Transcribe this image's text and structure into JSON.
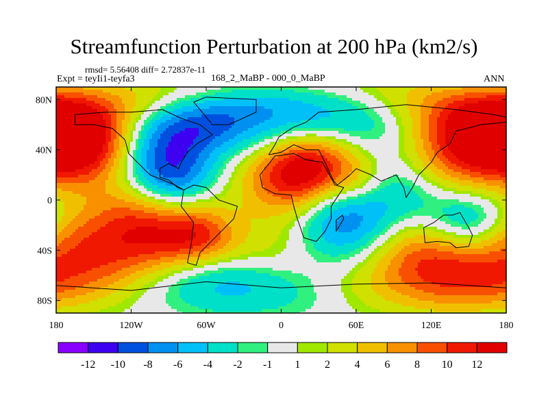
{
  "title": "Streamfunction Perturbation at 200 hPa (km2/s)",
  "stats": "rmsd= 5.56408 diff= 2.72837e-11",
  "experiment": "Expt = teyIi1-teyfa3",
  "comparison": "168_2_MaBP - 000_0_MaBP",
  "season": "ANN",
  "chart_data": {
    "type": "heatmap",
    "title": "Streamfunction Perturbation at 200 hPa (km2/s)",
    "x_ticks": [
      {
        "value": -180,
        "label": "180"
      },
      {
        "value": -120,
        "label": "120W"
      },
      {
        "value": -60,
        "label": "60W"
      },
      {
        "value": 0,
        "label": "0"
      },
      {
        "value": 60,
        "label": "60E"
      },
      {
        "value": 120,
        "label": "120E"
      },
      {
        "value": 180,
        "label": "180"
      }
    ],
    "y_ticks": [
      {
        "value": 80,
        "label": "80N"
      },
      {
        "value": 40,
        "label": "40N"
      },
      {
        "value": 0,
        "label": "0"
      },
      {
        "value": -40,
        "label": "40S"
      },
      {
        "value": -80,
        "label": "80S"
      }
    ],
    "xlim": [
      -180,
      180
    ],
    "ylim": [
      -90,
      90
    ],
    "colorbar_labels": [
      "-12",
      "-10",
      "-8",
      "-6",
      "-4",
      "-2",
      "-1",
      "1",
      "2",
      "4",
      "6",
      "8",
      "10",
      "12"
    ],
    "colors": [
      "#8a00ff",
      "#3d00f0",
      "#0050e0",
      "#0090f0",
      "#00c0f8",
      "#00e0c8",
      "#30f080",
      "#e8e8e8",
      "#a0e800",
      "#d0e000",
      "#f0c000",
      "#f89000",
      "#f85000",
      "#f01800",
      "#e00000"
    ],
    "anomalies": [
      {
        "lon": -160,
        "lat": 44,
        "value": 12,
        "radius": 22
      },
      {
        "lon": -92,
        "lat": 18,
        "value": -13,
        "radius": 23
      },
      {
        "lon": -108,
        "lat": -18,
        "value": 13,
        "radius": 28
      },
      {
        "lon": -65,
        "lat": -32,
        "value": 10,
        "radius": 18
      },
      {
        "lon": -90,
        "lat": 60,
        "value": -9,
        "radius": 18
      },
      {
        "lon": -15,
        "lat": 48,
        "value": -6,
        "radius": 20
      },
      {
        "lon": 20,
        "lat": 27,
        "value": 12,
        "radius": 22
      },
      {
        "lon": 0,
        "lat": 22,
        "value": 7,
        "radius": 28
      },
      {
        "lon": 145,
        "lat": 42,
        "value": 12,
        "radius": 28
      },
      {
        "lon": 170,
        "lat": 70,
        "value": 6,
        "radius": 18
      },
      {
        "lon": 50,
        "lat": -10,
        "value": -9,
        "radius": 25
      },
      {
        "lon": 10,
        "lat": 60,
        "value": -4,
        "radius": 20
      },
      {
        "lon": 80,
        "lat": 58,
        "value": -6,
        "radius": 20
      },
      {
        "lon": -20,
        "lat": -48,
        "value": 6,
        "radius": 20
      },
      {
        "lon": -50,
        "lat": -58,
        "value": -11,
        "radius": 22
      },
      {
        "lon": -150,
        "lat": -58,
        "value": 5,
        "radius": 22
      },
      {
        "lon": 130,
        "lat": -55,
        "value": 10,
        "radius": 22
      },
      {
        "lon": 150,
        "lat": -15,
        "value": -6,
        "radius": 20
      },
      {
        "lon": 105,
        "lat": 10,
        "value": -4,
        "radius": 22
      },
      {
        "lon": -130,
        "lat": 70,
        "value": 3,
        "radius": 16
      },
      {
        "lon": 60,
        "lat": 15,
        "value": 5,
        "radius": 16
      },
      {
        "lon": -170,
        "lat": -30,
        "value": 4,
        "radius": 18
      },
      {
        "lon": 100,
        "lat": -35,
        "value": 3,
        "radius": 18
      }
    ]
  }
}
